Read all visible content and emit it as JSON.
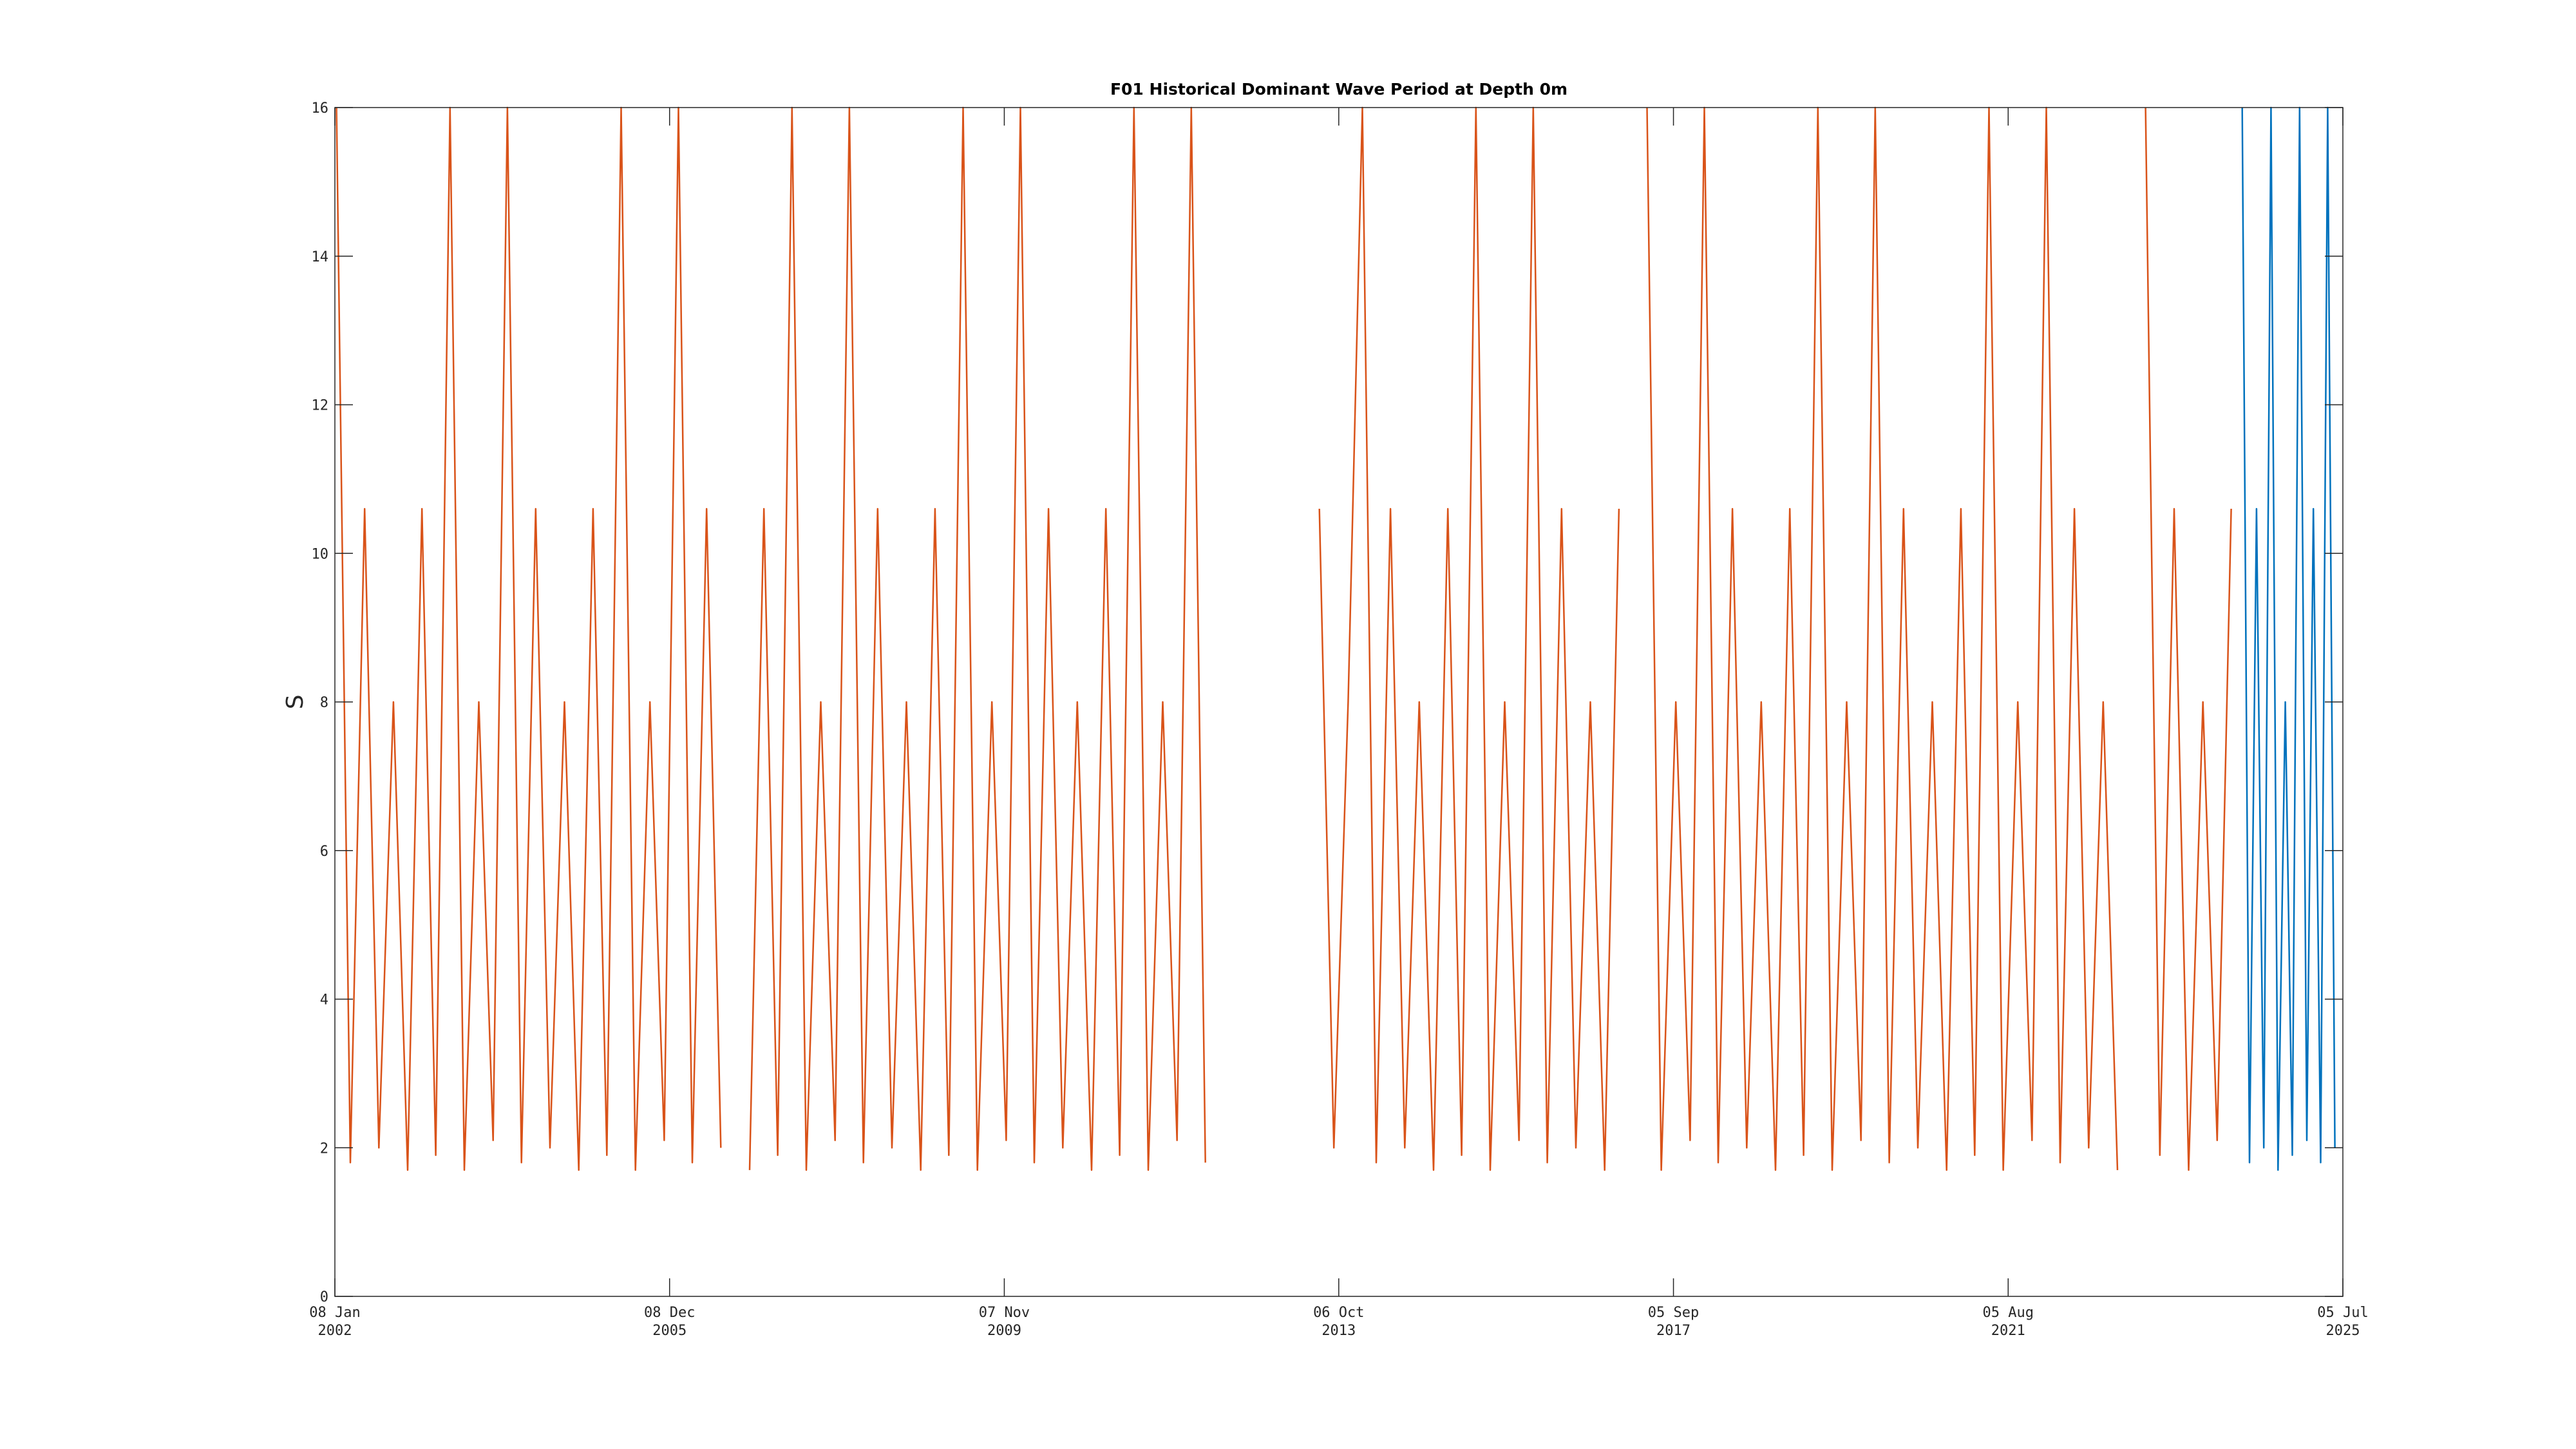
{
  "chart_data": {
    "type": "line",
    "title": "F01 Historical Dominant Wave Period at Depth 0m",
    "ylabel": "S",
    "xlim": [
      "2002-01-08",
      "2025-07-05"
    ],
    "xticks": [
      {
        "value": "2002-01-08",
        "label": "08 Jan\n2002"
      },
      {
        "value": "2005-12-08",
        "label": "08 Dec\n2005"
      },
      {
        "value": "2009-11-07",
        "label": "07 Nov\n2009"
      },
      {
        "value": "2013-10-06",
        "label": "06 Oct\n2013"
      },
      {
        "value": "2017-09-05",
        "label": "05 Sep\n2017"
      },
      {
        "value": "2021-08-05",
        "label": "05 Aug\n2021"
      },
      {
        "value": "2025-07-05",
        "label": "05 Jul\n2025"
      }
    ],
    "ylim": [
      0,
      16
    ],
    "yticks": [
      0,
      2,
      4,
      6,
      8,
      10,
      12,
      14,
      16
    ],
    "series": [
      {
        "color": "#D95319",
        "x": [
          "2002-01-15",
          "2002-03-15",
          "2002-05-15",
          "2002-07-15",
          "2002-09-15",
          "2002-11-15",
          "2003-01-15",
          "2003-03-15",
          "2003-05-15",
          "2003-07-15",
          "2003-09-15",
          "2003-11-15",
          "2004-01-15",
          "2004-03-15",
          "2004-05-15",
          "2004-07-15",
          "2004-09-15",
          "2004-11-15",
          "2005-01-15",
          "2005-03-15",
          "2005-05-15",
          "2005-07-15",
          "2005-09-15",
          "2005-11-15",
          "2006-01-15",
          "2006-03-15",
          "2006-05-15",
          "2006-07-15",
          "2006-09-15",
          "2006-11-15",
          "2007-01-15",
          "2007-03-15",
          "2007-05-15",
          "2007-07-15",
          "2007-09-15",
          "2007-11-15",
          "2008-01-15",
          "2008-03-15",
          "2008-05-15",
          "2008-07-15",
          "2008-09-15",
          "2008-11-15",
          "2009-01-15",
          "2009-03-15",
          "2009-05-15",
          "2009-07-15",
          "2009-09-15",
          "2009-11-15",
          "2010-01-15",
          "2010-03-15",
          "2010-05-15",
          "2010-07-15",
          "2010-09-15",
          "2010-11-15",
          "2011-01-15",
          "2011-03-15",
          "2011-05-15",
          "2011-07-15",
          "2011-09-15",
          "2011-11-15",
          "2012-01-15",
          "2012-03-15",
          "2012-11-15",
          "2013-07-15",
          "2013-09-15",
          "2013-11-15",
          "2014-01-15",
          "2014-03-15",
          "2014-05-15",
          "2014-07-15",
          "2014-09-15",
          "2014-11-15",
          "2015-01-15",
          "2015-03-15",
          "2015-05-15",
          "2015-07-15",
          "2015-09-15",
          "2015-11-15",
          "2016-01-15",
          "2016-03-15",
          "2016-05-15",
          "2016-07-15",
          "2016-09-15",
          "2016-11-15",
          "2017-01-15",
          "2017-03-15",
          "2017-05-15",
          "2017-07-15",
          "2017-09-15",
          "2017-11-15",
          "2018-01-15",
          "2018-03-15",
          "2018-05-15",
          "2018-07-15",
          "2018-09-15",
          "2018-11-15",
          "2019-01-15",
          "2019-03-15",
          "2019-05-15",
          "2019-07-15",
          "2019-09-15",
          "2019-11-15",
          "2020-01-15",
          "2020-03-15",
          "2020-05-15",
          "2020-07-15",
          "2020-09-15",
          "2020-11-15",
          "2021-01-15",
          "2021-03-15",
          "2021-05-15",
          "2021-07-15",
          "2021-09-15",
          "2021-11-15",
          "2022-01-15",
          "2022-03-15",
          "2022-05-15",
          "2022-07-15",
          "2022-09-15",
          "2022-11-15",
          "2023-01-15",
          "2023-03-15",
          "2023-05-15",
          "2023-07-15",
          "2023-09-15",
          "2023-11-15",
          "2024-01-15",
          "2024-03-15"
        ],
        "values": [
          16,
          1.8,
          10.6,
          2,
          8,
          1.7,
          10.6,
          1.9,
          16,
          1.7,
          8,
          2.1,
          16,
          1.8,
          10.6,
          2,
          8,
          1.7,
          10.6,
          1.9,
          16,
          1.7,
          8,
          2.1,
          16,
          1.8,
          10.6,
          2,
          null,
          1.7,
          10.6,
          1.9,
          16,
          1.7,
          8,
          2.1,
          16,
          1.8,
          10.6,
          2,
          8,
          1.7,
          10.6,
          1.9,
          16,
          1.7,
          8,
          2.1,
          16,
          1.8,
          10.6,
          2,
          8,
          1.7,
          10.6,
          1.9,
          16,
          1.7,
          8,
          2.1,
          16,
          1.8,
          null,
          10.6,
          2,
          8,
          16,
          1.8,
          10.6,
          2,
          8,
          1.7,
          10.6,
          1.9,
          16,
          1.7,
          8,
          2.1,
          16,
          1.8,
          10.6,
          2,
          8,
          1.7,
          10.6,
          null,
          16,
          1.7,
          8,
          2.1,
          16,
          1.8,
          10.6,
          2,
          8,
          1.7,
          10.6,
          1.9,
          16,
          1.7,
          8,
          2.1,
          16,
          1.8,
          10.6,
          2,
          8,
          1.7,
          10.6,
          1.9,
          16,
          1.7,
          8,
          2.1,
          16,
          1.8,
          10.6,
          2,
          8,
          1.7,
          null,
          16,
          1.9,
          10.6,
          1.7,
          8,
          2.1,
          10.6
        ]
      },
      {
        "color": "#0072BD",
        "x": [
          "2024-05-01",
          "2024-06-01",
          "2024-07-01",
          "2024-08-01",
          "2024-09-01",
          "2024-10-01",
          "2024-11-01",
          "2024-12-01",
          "2025-01-01",
          "2025-02-01",
          "2025-03-01",
          "2025-04-01",
          "2025-05-01",
          "2025-06-01"
        ],
        "values": [
          16,
          1.8,
          10.6,
          2,
          16,
          1.7,
          8,
          1.9,
          16,
          2.1,
          10.6,
          1.8,
          16,
          2
        ]
      }
    ]
  }
}
